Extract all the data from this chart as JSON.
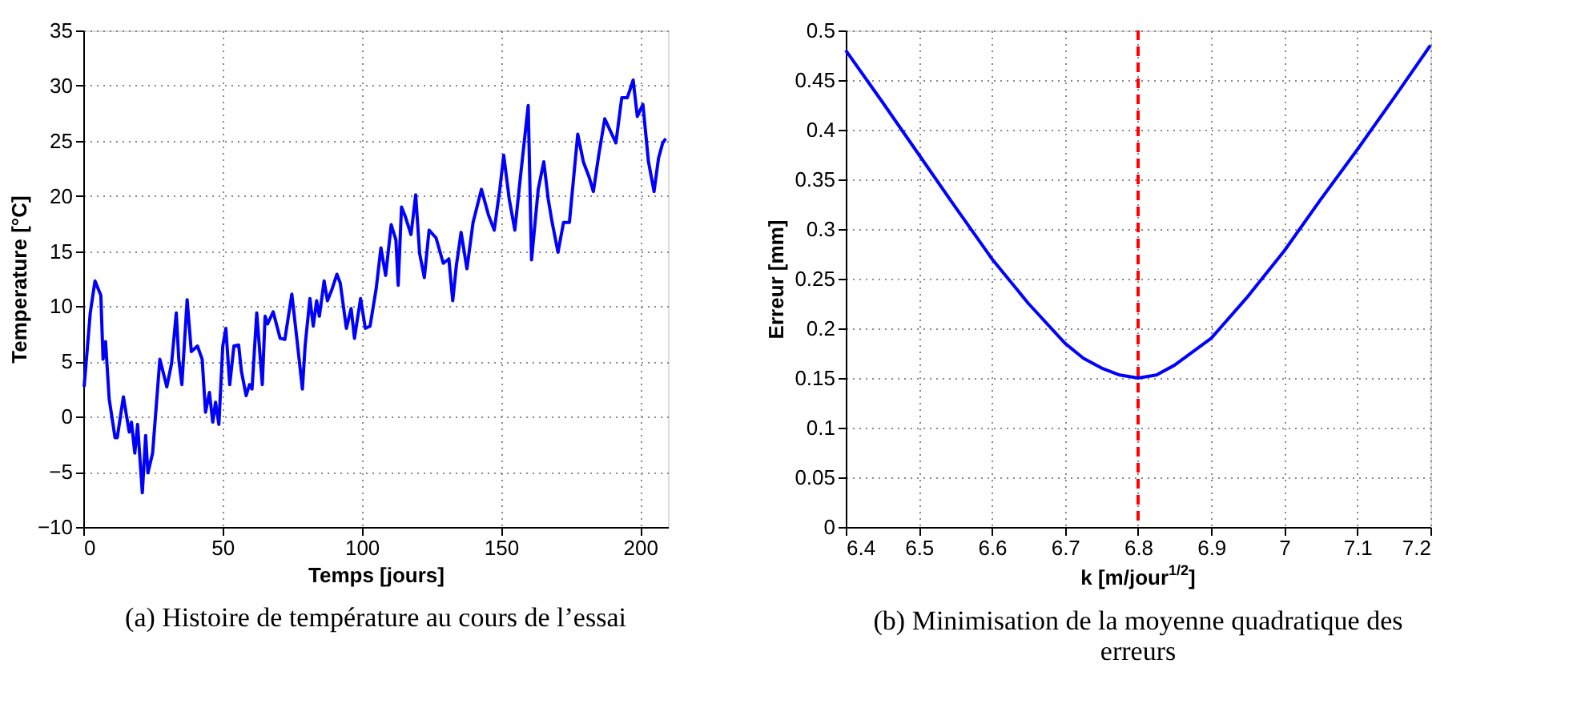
{
  "chart_data": [
    {
      "type": "line",
      "title": "(a)  Histoire de température au cours de l’essai",
      "xlabel": "Temps [jours]",
      "ylabel": "Temperature [°C]",
      "xlim": [
        0,
        210
      ],
      "xticks": [
        0,
        50,
        100,
        150,
        200
      ],
      "ylim": [
        -10,
        35
      ],
      "yticks": [
        -10,
        -5,
        0,
        5,
        10,
        15,
        20,
        25,
        30,
        35
      ],
      "grid": true,
      "marker": "none",
      "line_style": "solid",
      "series": [
        {
          "color": "#0000ff",
          "x": [
            0.3,
            2.5,
            4.2,
            6.3,
            7.1,
            8,
            9.3,
            11.4,
            12.2,
            14.4,
            16.5,
            17.3,
            18.5,
            19.5,
            21.2,
            22.4,
            23.2,
            24.9,
            27.5,
            30,
            31.7,
            33.4,
            34.3,
            35.4,
            37.3,
            38.8,
            41,
            42.7,
            43.9,
            45.3,
            46.5,
            47.5,
            48.7,
            50.1,
            51.2,
            52.6,
            54.1,
            55.8,
            56.8,
            58.5,
            59.7,
            60.6,
            62.3,
            64.3,
            65.3,
            66.2,
            68.2,
            70.7,
            72.4,
            74.9,
            76.7,
            78.7,
            79.7,
            81.4,
            82.6,
            83.8,
            84.8,
            86.5,
            87.7,
            89.4,
            91.1,
            92.3,
            94.5,
            96.2,
            97.4,
            99.6,
            101.3,
            103,
            105.2,
            106.9,
            108.6,
            110.6,
            112.3,
            113.1,
            114.3,
            115.7,
            117.7,
            119.4,
            120.8,
            122.5,
            124.2,
            126.7,
            129.3,
            131.3,
            132.7,
            134,
            135.7,
            137.8,
            140,
            143,
            145.5,
            147.6,
            149.6,
            151,
            153,
            155,
            157,
            159.8,
            161,
            163.4,
            165.4,
            167,
            168.4,
            170.5,
            172.5,
            174.6,
            177.6,
            179.6,
            181.7,
            183.2,
            185.2,
            187.3,
            189.3,
            191.3,
            193.4,
            195.4,
            197.5,
            199,
            201,
            203,
            205,
            206.6,
            208.1,
            209.2
          ],
          "values": [
            2.7,
            9.4,
            12.3,
            11,
            5.2,
            6.8,
            1.6,
            -1.9,
            -1.9,
            1.8,
            -1.4,
            -0.5,
            -3.3,
            -0.7,
            -6.9,
            -1.7,
            -5.1,
            -3.3,
            5.2,
            2.7,
            4.8,
            9.4,
            5.2,
            2.9,
            10.6,
            5.9,
            6.4,
            5.2,
            0.4,
            2.2,
            -0.5,
            1.3,
            -0.7,
            6.4,
            8,
            2.9,
            6.4,
            6.5,
            4.1,
            1.9,
            2.9,
            2.5,
            9.4,
            2.9,
            9.1,
            8.4,
            9.5,
            7.1,
            7,
            11.1,
            7.1,
            2.5,
            6.5,
            10.7,
            8.2,
            10.5,
            9.1,
            12.3,
            10.5,
            11.6,
            12.9,
            12.1,
            8,
            9.8,
            7.1,
            10.7,
            8,
            8.2,
            11.6,
            15.3,
            12.8,
            17.4,
            16,
            11.9,
            19,
            18.1,
            16.5,
            20.1,
            14.8,
            12.6,
            16.9,
            16.2,
            13.9,
            14.3,
            10.5,
            13.7,
            16.7,
            13.4,
            17.6,
            20.6,
            18.3,
            16.9,
            20.6,
            23.7,
            19.7,
            16.9,
            21.7,
            28.2,
            14.2,
            20.6,
            23.1,
            19.7,
            17.6,
            14.9,
            17.6,
            17.6,
            25.6,
            23.1,
            21.7,
            20.4,
            23.8,
            27,
            25.9,
            24.8,
            28.9,
            28.9,
            30.5,
            27.2,
            28.3,
            23.1,
            20.4,
            23.4,
            24.8,
            25.2
          ]
        }
      ]
    },
    {
      "type": "line",
      "title": "(b)  Minimisation de la moyenne quadratique des erreurs",
      "xlabel": "k [m/jour$^{1/2}$]",
      "ylabel": "Erreur [mm]",
      "xlim": [
        6.4,
        7.2
      ],
      "xticks": [
        6.4,
        6.5,
        6.6,
        6.7,
        6.8,
        6.9,
        7,
        7.1,
        7.2
      ],
      "ylim": [
        0,
        0.5
      ],
      "yticks": [
        0,
        0.05,
        0.1,
        0.15,
        0.2,
        0.25,
        0.3,
        0.35,
        0.4,
        0.45,
        0.5
      ],
      "grid": true,
      "marker": "none",
      "line_style": "solid",
      "ref_lines": [
        {
          "axis": "x",
          "value": 6.8,
          "color": "#ff0000",
          "line_style": "dashed"
        }
      ],
      "series": [
        {
          "color": "#0000ff",
          "x": [
            6.4,
            6.45,
            6.5,
            6.55,
            6.6,
            6.65,
            6.7,
            6.725,
            6.75,
            6.775,
            6.8,
            6.825,
            6.85,
            6.9,
            6.95,
            7.0,
            7.05,
            7.1,
            7.15,
            7.2
          ],
          "values": [
            0.48,
            0.428,
            0.375,
            0.322,
            0.27,
            0.225,
            0.185,
            0.17,
            0.16,
            0.153,
            0.15,
            0.153,
            0.163,
            0.19,
            0.232,
            0.278,
            0.33,
            0.38,
            0.432,
            0.485
          ]
        }
      ]
    }
  ]
}
